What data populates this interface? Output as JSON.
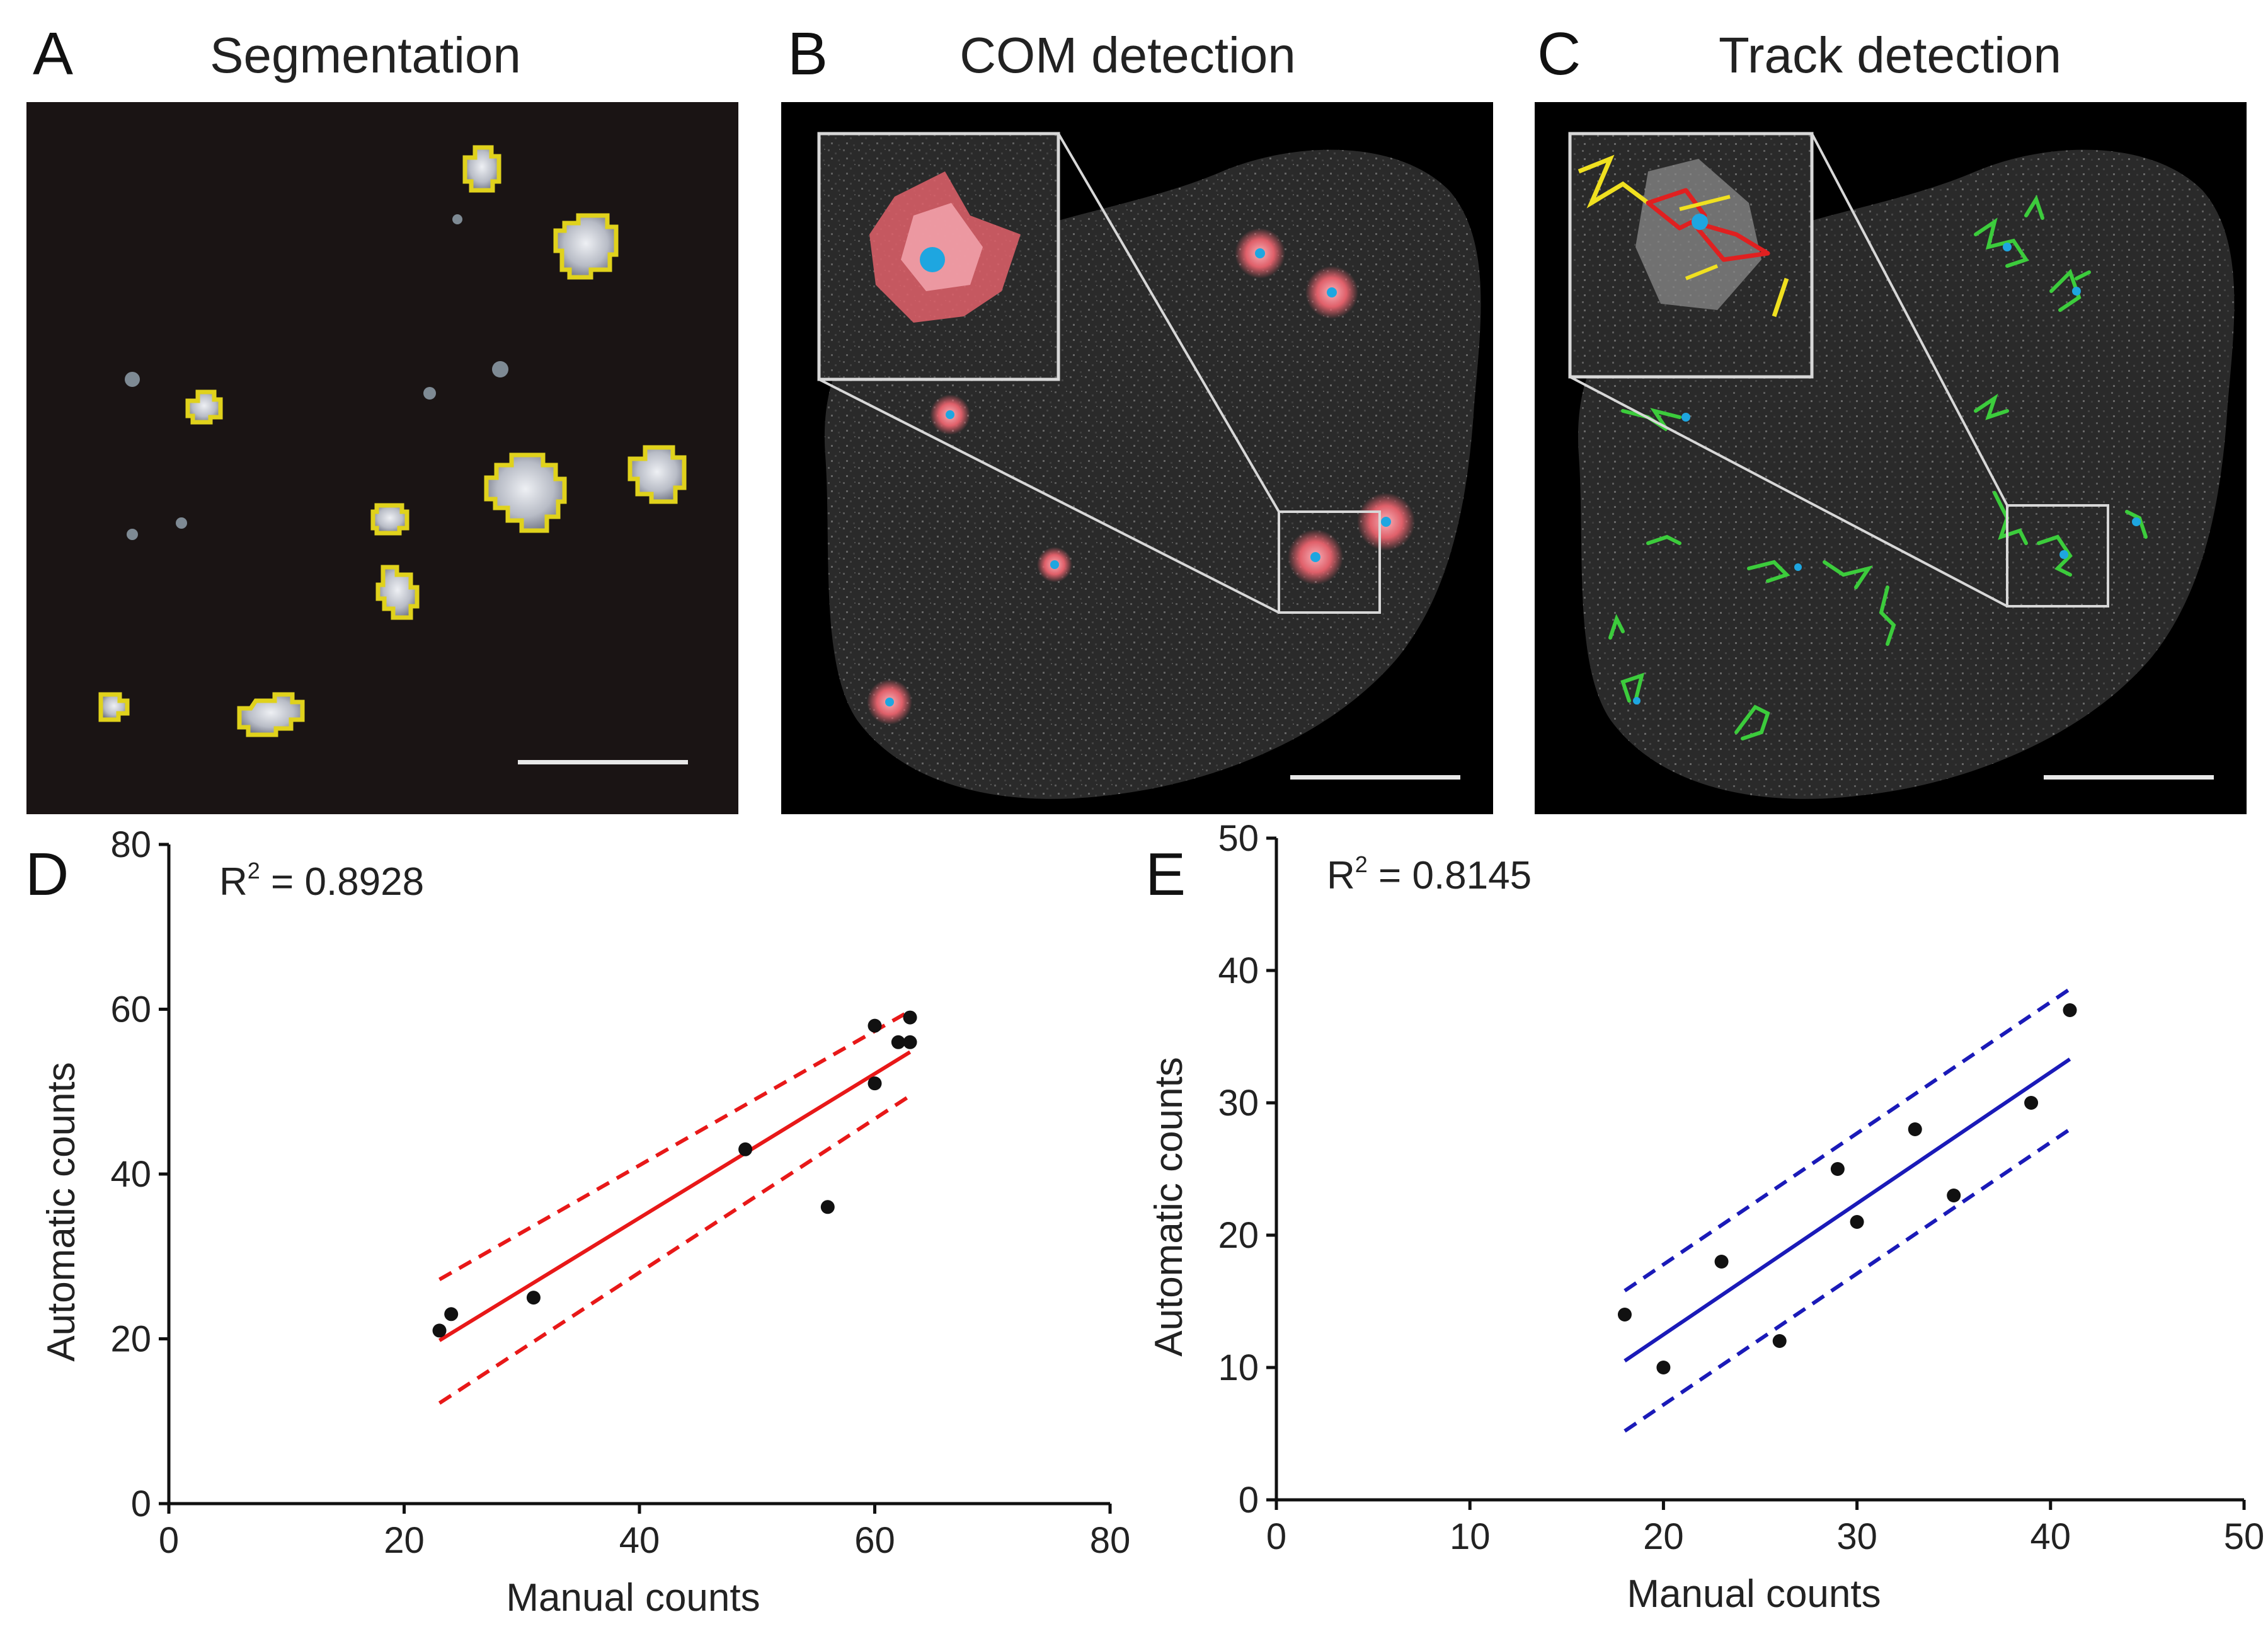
{
  "panels": {
    "A": {
      "letter": "A",
      "title": "Segmentation"
    },
    "B": {
      "letter": "B",
      "title": "COM detection"
    },
    "C": {
      "letter": "C",
      "title": "Track detection"
    },
    "D": {
      "letter": "D"
    },
    "E": {
      "letter": "E"
    }
  },
  "colors": {
    "background_dark": "#1a1414",
    "segmentation_outline": "#e0d21c",
    "com_spot": "#e0606a",
    "com_center": "#1ea6e0",
    "track_green": "#3ccc3c",
    "track_yellow": "#f0e020",
    "track_red": "#e02020",
    "fit_red": "#e81818",
    "fit_blue": "#1a1ab8"
  },
  "chart_data": [
    {
      "type": "scatter",
      "panel": "D",
      "annotation": {
        "prefix": "R",
        "superscript": "2",
        "value": " = 0.8928"
      },
      "xlabel": "Manual counts",
      "ylabel": "Automatic counts",
      "xlim": [
        0,
        80
      ],
      "ylim": [
        0,
        80
      ],
      "xticks": [
        0,
        20,
        40,
        60,
        80
      ],
      "yticks": [
        0,
        20,
        40,
        60,
        80
      ],
      "points": [
        {
          "x": 23,
          "y": 21
        },
        {
          "x": 24,
          "y": 23
        },
        {
          "x": 31,
          "y": 25
        },
        {
          "x": 49,
          "y": 43
        },
        {
          "x": 56,
          "y": 36
        },
        {
          "x": 60,
          "y": 51
        },
        {
          "x": 60,
          "y": 58
        },
        {
          "x": 62,
          "y": 56
        },
        {
          "x": 63,
          "y": 56
        },
        {
          "x": 63,
          "y": 59
        }
      ],
      "fit": {
        "x": [
          23,
          63
        ],
        "y": [
          19.8,
          54.8
        ]
      },
      "ci_upper": {
        "x": [
          23,
          63
        ],
        "y": [
          27.2,
          59.8
        ]
      },
      "ci_lower": {
        "x": [
          23,
          63
        ],
        "y": [
          12.2,
          49.5
        ]
      },
      "line_color": "#e81818"
    },
    {
      "type": "scatter",
      "panel": "E",
      "annotation": {
        "prefix": "R",
        "superscript": "2",
        "value": " = 0.8145"
      },
      "xlabel": "Manual counts",
      "ylabel": "Automatic counts",
      "xlim": [
        0,
        50
      ],
      "ylim": [
        0,
        50
      ],
      "xticks": [
        0,
        10,
        20,
        30,
        40,
        50
      ],
      "yticks": [
        0,
        10,
        20,
        30,
        40,
        50
      ],
      "points": [
        {
          "x": 18,
          "y": 14
        },
        {
          "x": 20,
          "y": 10
        },
        {
          "x": 23,
          "y": 18
        },
        {
          "x": 26,
          "y": 12
        },
        {
          "x": 29,
          "y": 25
        },
        {
          "x": 30,
          "y": 21
        },
        {
          "x": 33,
          "y": 28
        },
        {
          "x": 35,
          "y": 23
        },
        {
          "x": 39,
          "y": 30
        },
        {
          "x": 41,
          "y": 37
        }
      ],
      "fit": {
        "x": [
          18,
          41
        ],
        "y": [
          10.5,
          33.3
        ]
      },
      "ci_upper": {
        "x": [
          18,
          41
        ],
        "y": [
          15.8,
          38.6
        ]
      },
      "ci_lower": {
        "x": [
          18,
          41
        ],
        "y": [
          5.2,
          28.0
        ]
      },
      "line_color": "#1a1ab8"
    }
  ]
}
